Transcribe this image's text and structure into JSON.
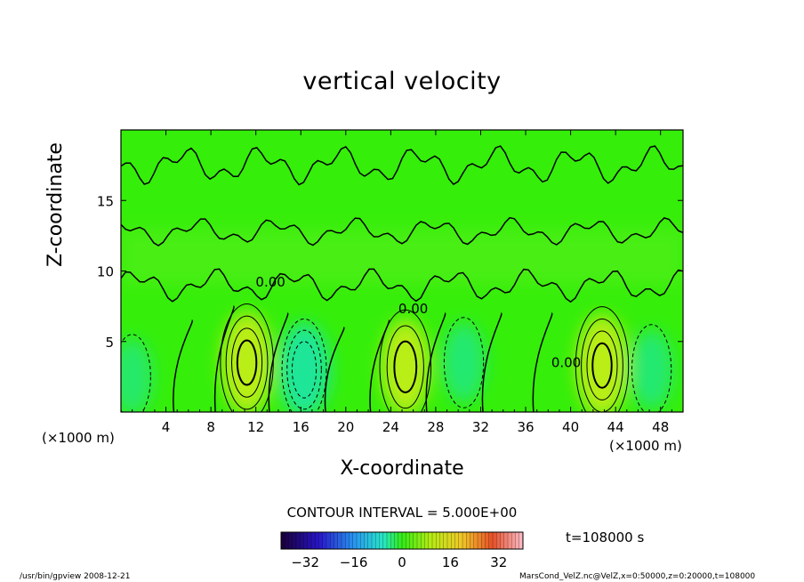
{
  "chart_data": {
    "type": "heatmap",
    "title": "vertical velocity",
    "xlabel": "X-coordinate",
    "ylabel": "Z-coordinate",
    "x_unit_left": "(×1000 m)",
    "x_unit_right": "(×1000 m)",
    "xlim": [
      0,
      50
    ],
    "ylim": [
      0,
      20
    ],
    "x_ticks": [
      4,
      8,
      12,
      16,
      20,
      24,
      28,
      32,
      36,
      40,
      44,
      48
    ],
    "y_ticks": [
      5,
      10,
      15
    ],
    "contour_interval_text": "CONTOUR INTERVAL = 5.000E+00",
    "contour_labels": [
      {
        "x": 13.3,
        "z": 8.9,
        "text": "0.00"
      },
      {
        "x": 26.0,
        "z": 7.0,
        "text": "0.00"
      },
      {
        "x": 39.6,
        "z": 3.2,
        "text": "0.00"
      }
    ],
    "time_text": "t=108000  s",
    "colorbar": {
      "min": -40,
      "max": 40,
      "ticks": [
        -32,
        -16,
        0,
        16,
        32
      ],
      "tick_labels": [
        "−32",
        "−16",
        "0",
        "16",
        "32"
      ]
    },
    "updraft_cores": [
      {
        "x": 11.2,
        "z": 3.5,
        "peak": 20
      },
      {
        "x": 25.3,
        "z": 3.2,
        "peak": 15
      },
      {
        "x": 42.8,
        "z": 3.3,
        "peak": 20
      }
    ],
    "downdraft_cores": [
      {
        "x": 16.3,
        "z": 3.0,
        "peak": -18
      },
      {
        "x": 30.5,
        "z": 3.5,
        "peak": -8
      },
      {
        "x": 47.2,
        "z": 3.0,
        "peak": -8
      },
      {
        "x": 1.0,
        "z": 2.5,
        "peak": -6
      }
    ]
  },
  "footer": {
    "left": "/usr/bin/gpview   2008-12-21",
    "right": "MarsCond_VelZ.nc@VelZ,x=0:50000,z=0:20000,t=108000"
  },
  "colors": {
    "background_field": "#35ee0a",
    "updraft": "#c8ee14",
    "downdraft": "#1ee6a0",
    "contour": "#000000"
  }
}
